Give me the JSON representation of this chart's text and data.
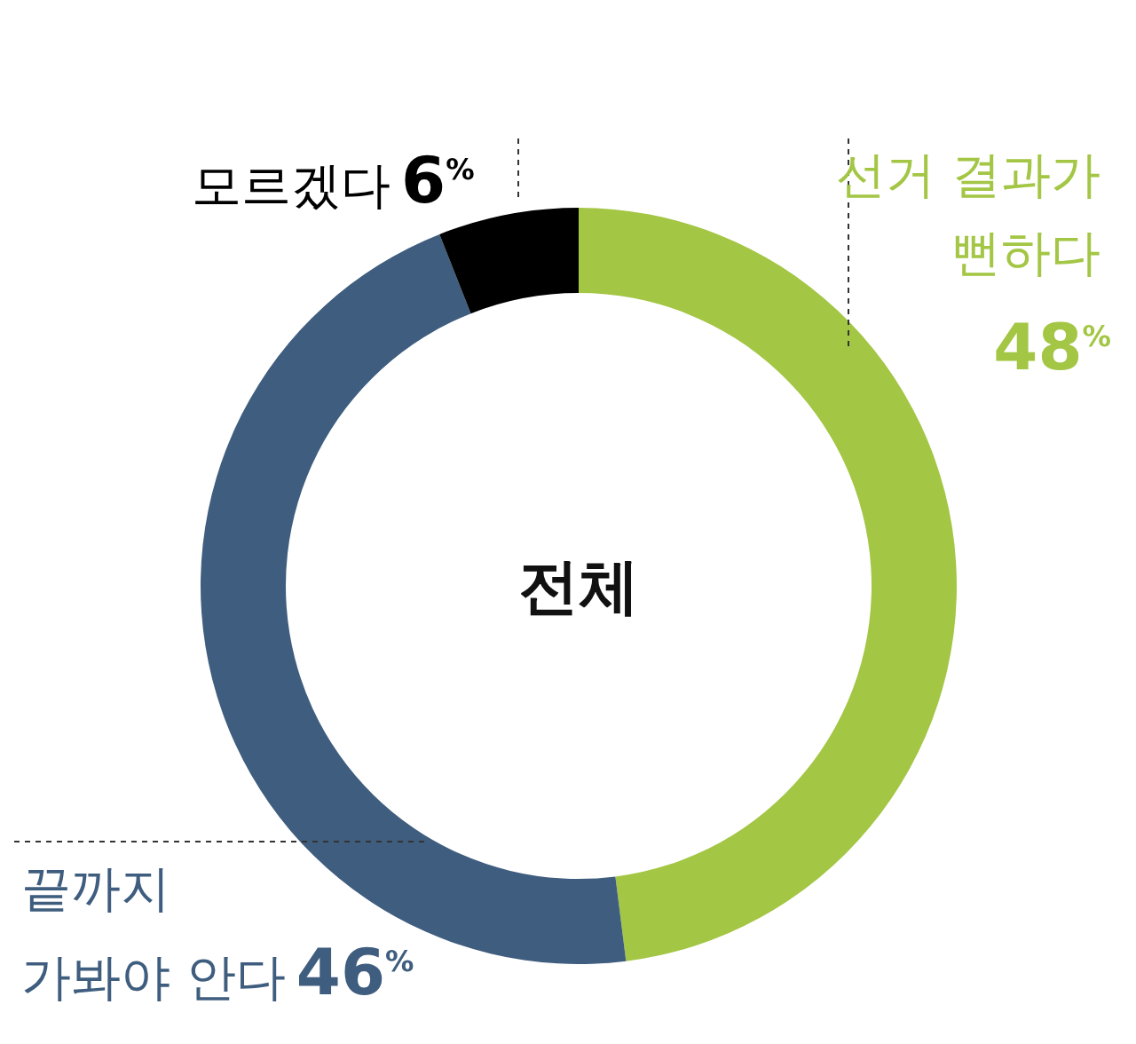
{
  "chart_data": {
    "type": "donut",
    "title": "전체",
    "categories": [
      "선거 결과가\n뻔하다",
      "끝까지\n가봐야 안다",
      "모르겠다"
    ],
    "values": [
      48,
      46,
      6
    ],
    "colors": [
      "#a3c644",
      "#3f5d7e",
      "#000000"
    ],
    "value_labels": [
      "48$^{%}$",
      "46$^{%}$",
      "6$^{%}$"
    ]
  }
}
